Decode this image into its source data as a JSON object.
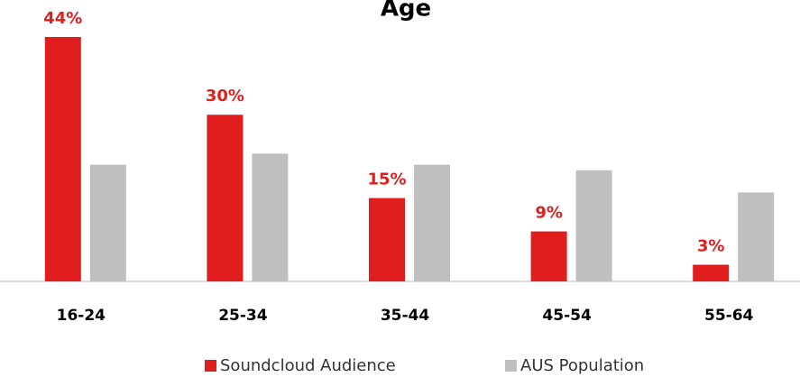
{
  "chart_data": {
    "type": "bar",
    "title": "Age",
    "categories": [
      "16-24",
      "25-34",
      "35-44",
      "45-54",
      "55-64"
    ],
    "series": [
      {
        "name": "Soundcloud Audience",
        "color": "#e01e1e",
        "values": [
          44,
          30,
          15,
          9,
          3
        ],
        "value_labels": [
          "44%",
          "30%",
          "15%",
          "9%",
          "3%"
        ]
      },
      {
        "name": "AUS Population",
        "color": "#bfbfbf",
        "values": [
          21,
          23,
          21,
          20,
          16
        ]
      }
    ],
    "ylim": [
      0,
      44
    ],
    "legend": "bottom"
  }
}
